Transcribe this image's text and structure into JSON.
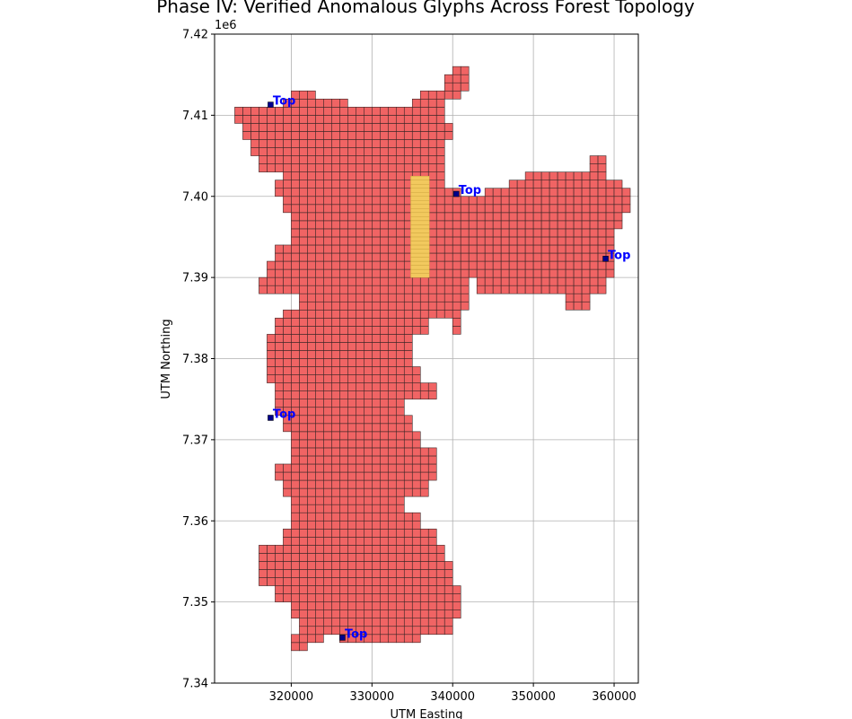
{
  "chart_data": {
    "type": "scatter",
    "title": "Phase IV: Verified Anomalous Glyphs Across Forest Topology",
    "xlabel": "UTM Easting",
    "ylabel": "UTM Northing",
    "y_offset_label": "1e6",
    "xlim": [
      310500,
      363000
    ],
    "ylim": [
      7340000,
      7420000
    ],
    "x_ticks": [
      320000,
      330000,
      340000,
      350000,
      360000
    ],
    "x_tick_labels": [
      "320000",
      "330000",
      "340000",
      "350000",
      "360000"
    ],
    "y_ticks": [
      7340000,
      7350000,
      7360000,
      7370000,
      7380000,
      7390000,
      7400000,
      7410000,
      7420000
    ],
    "y_tick_labels": [
      "7.34",
      "7.35",
      "7.36",
      "7.37",
      "7.38",
      "7.39",
      "7.40",
      "7.41",
      "7.42"
    ],
    "grid": true,
    "cell_size": 1000,
    "colors": {
      "cell_fill": "#f06464",
      "cell_edge": "#3a2626",
      "highlight_fill": "#f2c95e",
      "marker": "#00008b",
      "annotation": "#0000ff"
    },
    "highlight_region": {
      "x0": 334800,
      "x1": 337100,
      "y0": 7390000,
      "y1": 7402500
    },
    "annotations": [
      {
        "text": "Top",
        "x": 317500,
        "y": 7411300
      },
      {
        "text": "Top",
        "x": 340500,
        "y": 7400300
      },
      {
        "text": "Top",
        "x": 359000,
        "y": 7392300
      },
      {
        "text": "Top",
        "x": 317500,
        "y": 7372700
      },
      {
        "text": "Top",
        "x": 326400,
        "y": 7345600
      }
    ],
    "region_rows": [
      {
        "y0": 7344000,
        "y1": 7345000,
        "spans": [
          [
            320000,
            322000
          ]
        ]
      },
      {
        "y0": 7345000,
        "y1": 7346000,
        "spans": [
          [
            320000,
            324000
          ],
          [
            326000,
            336000
          ]
        ]
      },
      {
        "y0": 7346000,
        "y1": 7348000,
        "spans": [
          [
            321000,
            340000
          ]
        ]
      },
      {
        "y0": 7348000,
        "y1": 7350000,
        "spans": [
          [
            320000,
            341000
          ]
        ]
      },
      {
        "y0": 7350000,
        "y1": 7352000,
        "spans": [
          [
            318000,
            341000
          ]
        ]
      },
      {
        "y0": 7352000,
        "y1": 7355000,
        "spans": [
          [
            316000,
            340000
          ]
        ]
      },
      {
        "y0": 7355000,
        "y1": 7357000,
        "spans": [
          [
            316000,
            339000
          ]
        ]
      },
      {
        "y0": 7357000,
        "y1": 7359000,
        "spans": [
          [
            319000,
            338000
          ]
        ]
      },
      {
        "y0": 7359000,
        "y1": 7361000,
        "spans": [
          [
            320000,
            336000
          ]
        ]
      },
      {
        "y0": 7361000,
        "y1": 7363000,
        "spans": [
          [
            320000,
            334000
          ]
        ]
      },
      {
        "y0": 7363000,
        "y1": 7365000,
        "spans": [
          [
            319000,
            337000
          ]
        ]
      },
      {
        "y0": 7365000,
        "y1": 7367000,
        "spans": [
          [
            318000,
            338000
          ]
        ]
      },
      {
        "y0": 7367000,
        "y1": 7369000,
        "spans": [
          [
            320000,
            338000
          ]
        ]
      },
      {
        "y0": 7369000,
        "y1": 7371000,
        "spans": [
          [
            320000,
            336000
          ]
        ]
      },
      {
        "y0": 7371000,
        "y1": 7373000,
        "spans": [
          [
            319000,
            335000
          ]
        ]
      },
      {
        "y0": 7373000,
        "y1": 7375000,
        "spans": [
          [
            318000,
            334000
          ]
        ]
      },
      {
        "y0": 7375000,
        "y1": 7377000,
        "spans": [
          [
            318000,
            338000
          ]
        ]
      },
      {
        "y0": 7377000,
        "y1": 7379000,
        "spans": [
          [
            317000,
            336000
          ]
        ]
      },
      {
        "y0": 7379000,
        "y1": 7381000,
        "spans": [
          [
            317000,
            335000
          ]
        ]
      },
      {
        "y0": 7381000,
        "y1": 7383000,
        "spans": [
          [
            317000,
            335000
          ]
        ]
      },
      {
        "y0": 7383000,
        "y1": 7385000,
        "spans": [
          [
            318000,
            337000
          ],
          [
            340000,
            341000
          ]
        ]
      },
      {
        "y0": 7385000,
        "y1": 7386000,
        "spans": [
          [
            319000,
            341000
          ]
        ]
      },
      {
        "y0": 7386000,
        "y1": 7388000,
        "spans": [
          [
            321000,
            342000
          ],
          [
            354000,
            357000
          ]
        ]
      },
      {
        "y0": 7388000,
        "y1": 7390000,
        "spans": [
          [
            316000,
            324000
          ],
          [
            324000,
            342000
          ],
          [
            343000,
            359000
          ]
        ]
      },
      {
        "y0": 7390000,
        "y1": 7392000,
        "spans": [
          [
            317000,
            343000
          ],
          [
            343000,
            360000
          ]
        ]
      },
      {
        "y0": 7392000,
        "y1": 7394000,
        "spans": [
          [
            318000,
            360000
          ]
        ]
      },
      {
        "y0": 7394000,
        "y1": 7396000,
        "spans": [
          [
            320000,
            360000
          ]
        ]
      },
      {
        "y0": 7396000,
        "y1": 7398000,
        "spans": [
          [
            320000,
            361000
          ]
        ]
      },
      {
        "y0": 7398000,
        "y1": 7400000,
        "spans": [
          [
            319000,
            362000
          ]
        ]
      },
      {
        "y0": 7400000,
        "y1": 7401000,
        "spans": [
          [
            318000,
            341000
          ],
          [
            344000,
            362000
          ]
        ]
      },
      {
        "y0": 7401000,
        "y1": 7402000,
        "spans": [
          [
            318000,
            339000
          ],
          [
            347000,
            361000
          ]
        ]
      },
      {
        "y0": 7402000,
        "y1": 7403000,
        "spans": [
          [
            319000,
            339000
          ],
          [
            349000,
            359000
          ]
        ]
      },
      {
        "y0": 7403000,
        "y1": 7405000,
        "spans": [
          [
            316000,
            339000
          ],
          [
            357000,
            359000
          ]
        ]
      },
      {
        "y0": 7405000,
        "y1": 7407000,
        "spans": [
          [
            315000,
            339000
          ]
        ]
      },
      {
        "y0": 7407000,
        "y1": 7409000,
        "spans": [
          [
            314000,
            340000
          ]
        ]
      },
      {
        "y0": 7409000,
        "y1": 7411000,
        "spans": [
          [
            313000,
            339000
          ]
        ]
      },
      {
        "y0": 7411000,
        "y1": 7412000,
        "spans": [
          [
            319000,
            327000
          ],
          [
            335000,
            339000
          ]
        ]
      },
      {
        "y0": 7412000,
        "y1": 7413000,
        "spans": [
          [
            320000,
            323000
          ],
          [
            336000,
            341000
          ]
        ]
      },
      {
        "y0": 7413000,
        "y1": 7415000,
        "spans": [
          [
            339000,
            342000
          ]
        ]
      },
      {
        "y0": 7415000,
        "y1": 7416000,
        "spans": [
          [
            340000,
            342000
          ]
        ]
      }
    ]
  }
}
